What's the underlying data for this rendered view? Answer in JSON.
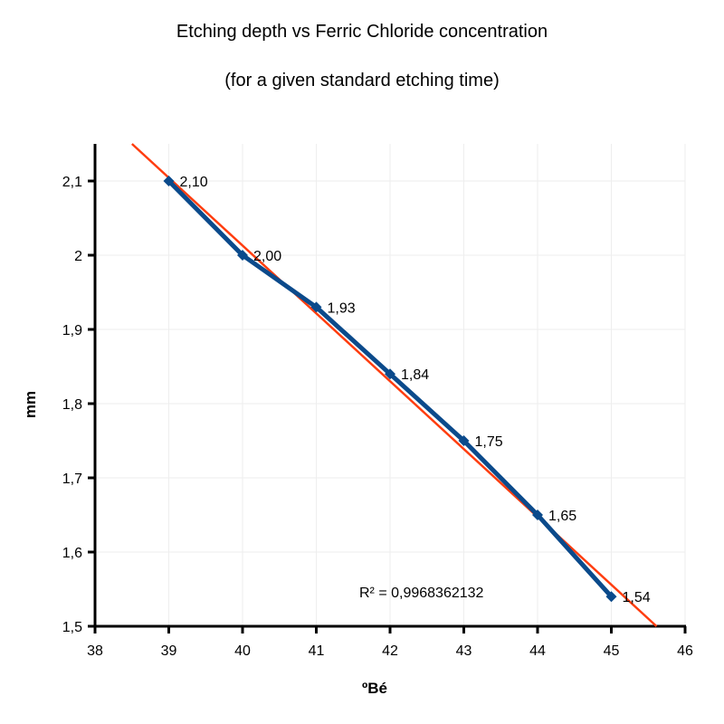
{
  "chart_data": {
    "type": "line",
    "title": "Etching depth vs Ferric Chloride concentration",
    "subtitle": "(for a given standard etching time)",
    "xlabel": "ºBé",
    "ylabel": "mm",
    "xlim": [
      38,
      46
    ],
    "ylim": [
      1.5,
      2.15
    ],
    "x_ticks": [
      38,
      39,
      40,
      41,
      42,
      43,
      44,
      45,
      46
    ],
    "x_tick_labels": [
      "38",
      "39",
      "40",
      "41",
      "42",
      "43",
      "44",
      "45",
      "46"
    ],
    "y_ticks": [
      1.5,
      1.6,
      1.7,
      1.8,
      1.9,
      2.0,
      2.1
    ],
    "y_tick_labels": [
      "1,5",
      "1,6",
      "1,7",
      "1,8",
      "1,9",
      "2",
      "2,1"
    ],
    "grid": true,
    "series": [
      {
        "name": "Etching depth",
        "color": "#0b4a8b",
        "marker": "diamond",
        "x": [
          39,
          40,
          41,
          42,
          43,
          44,
          45
        ],
        "values": [
          2.1,
          2.0,
          1.93,
          1.84,
          1.75,
          1.65,
          1.54
        ],
        "labels": [
          "2,10",
          "2,00",
          "1,93",
          "1,84",
          "1,75",
          "1,65",
          "1,54"
        ]
      }
    ],
    "trendline": {
      "type": "linear",
      "color": "#ff3d0f",
      "slope": -0.0914,
      "intercept": 5.669,
      "r_squared_label": "R² = 0,9968362132"
    }
  }
}
